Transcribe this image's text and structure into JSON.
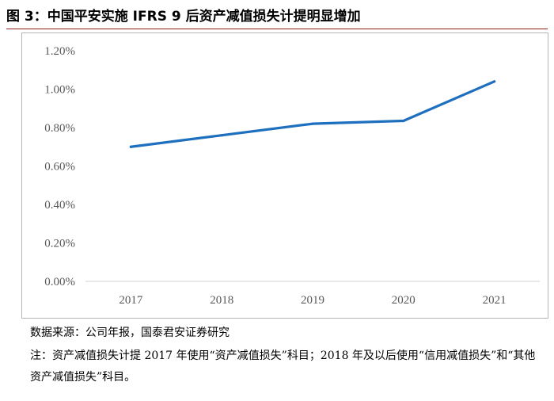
{
  "title": "图 3：中国平安实施 IFRS 9 后资产减值损失计提明显增加",
  "chart_data": {
    "type": "line",
    "title": "",
    "xlabel": "",
    "ylabel": "",
    "categories": [
      "2017",
      "2018",
      "2019",
      "2020",
      "2021"
    ],
    "series": [
      {
        "values": [
          0.7,
          0.76,
          0.82,
          0.835,
          1.04
        ],
        "color": "#1f6fbf"
      }
    ],
    "ylim": [
      0,
      1.2
    ],
    "yticks": [
      "0.00%",
      "0.20%",
      "0.40%",
      "0.60%",
      "0.80%",
      "1.00%",
      "1.20%"
    ],
    "grid": false,
    "legend": "none"
  },
  "source_note": "数据来源：公司年报，国泰君安证券研究",
  "footnote": "注：资产减值损失计提 2017 年使用“资产减值损失”科目；2018 年及以后使用“信用减值损失”和“其他资产减值损失”科目。"
}
